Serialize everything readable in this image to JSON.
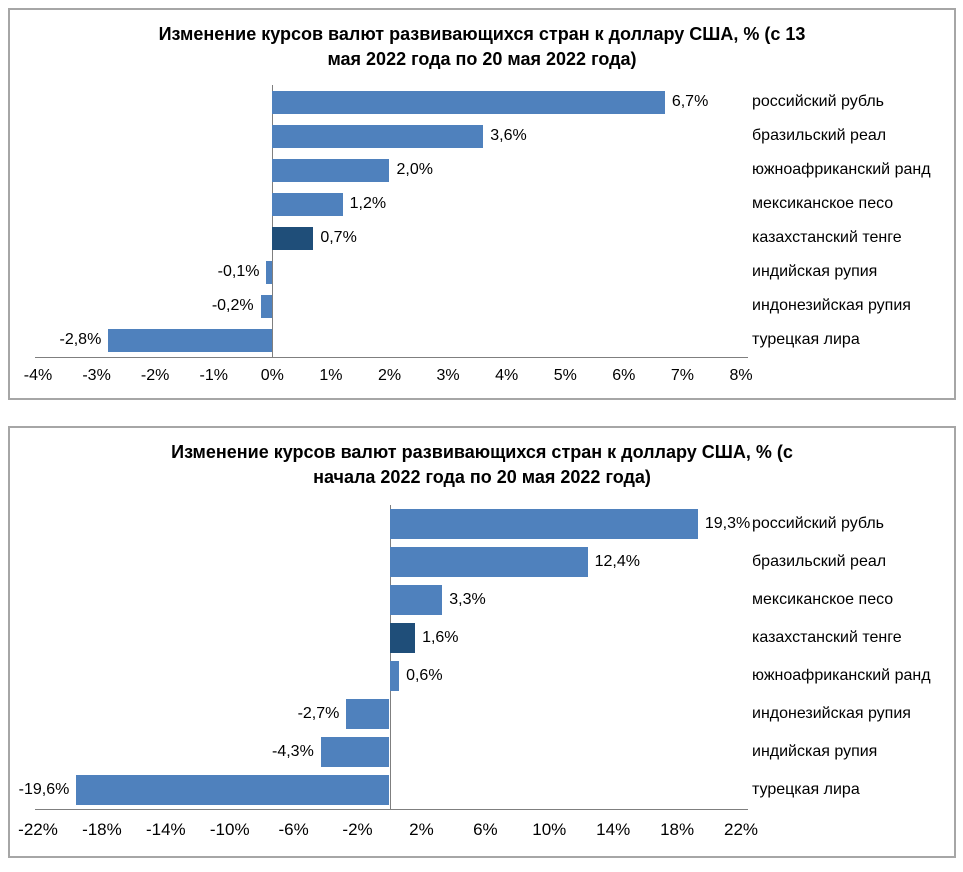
{
  "chart_data": [
    {
      "type": "bar",
      "orientation": "horizontal",
      "title": "Изменение курсов валют развивающихся стран к доллару США, % (с 13\nмая 2022 года по 20 мая 2022 года)",
      "categories": [
        "российский рубль",
        "бразильский реал",
        "южноафриканский ранд",
        "мексиканское песо",
        "казахстанский тенге",
        "индийская рупия",
        "индонезийская рупия",
        "турецкая лира"
      ],
      "values": [
        6.7,
        3.6,
        2.0,
        1.2,
        0.7,
        -0.1,
        -0.2,
        -2.8
      ],
      "value_labels": [
        "6,7%",
        "3,6%",
        "2,0%",
        "1,2%",
        "0,7%",
        "-0,1%",
        "-0,2%",
        "-2,8%"
      ],
      "highlight_index": 4,
      "xlim": [
        -4,
        8
      ],
      "tick_values": [
        -4,
        -3,
        -2,
        -1,
        0,
        1,
        2,
        3,
        4,
        5,
        6,
        7,
        8
      ],
      "tick_labels": [
        "-4%",
        "-3%",
        "-2%",
        "-1%",
        "0%",
        "1%",
        "2%",
        "3%",
        "4%",
        "5%",
        "6%",
        "7%",
        "8%"
      ],
      "legend": "none",
      "grid": "off",
      "colors": {
        "bar": "#4f81bd",
        "highlight": "#1f4e79",
        "axis": "#7f7f7f",
        "border": "#a6a6a6",
        "text": "#000000"
      }
    },
    {
      "type": "bar",
      "orientation": "horizontal",
      "title": "Изменение курсов валют развивающихся стран к доллару США, % (с\nначала 2022 года по 20 мая 2022 года)",
      "categories": [
        "российский рубль",
        "бразильский реал",
        "мексиканское песо",
        "казахстанский тенге",
        "южноафриканский ранд",
        "индонезийская рупия",
        "индийская рупия",
        "турецкая лира"
      ],
      "values": [
        19.3,
        12.4,
        3.3,
        1.6,
        0.6,
        -2.7,
        -4.3,
        -19.6
      ],
      "value_labels": [
        "19,3%",
        "12,4%",
        "3,3%",
        "1,6%",
        "0,6%",
        "-2,7%",
        "-4,3%",
        "-19,6%"
      ],
      "highlight_index": 3,
      "xlim": [
        -22,
        22
      ],
      "tick_values": [
        -22,
        -18,
        -14,
        -10,
        -6,
        -2,
        2,
        6,
        10,
        14,
        18,
        22
      ],
      "tick_labels": [
        "-22%",
        "-18%",
        "-14%",
        "-10%",
        "-6%",
        "-2%",
        "2%",
        "6%",
        "10%",
        "14%",
        "18%",
        "22%"
      ],
      "legend": "none",
      "grid": "off",
      "colors": {
        "bar": "#4f81bd",
        "highlight": "#1f4e79",
        "axis": "#7f7f7f",
        "border": "#a6a6a6",
        "text": "#000000"
      }
    }
  ]
}
